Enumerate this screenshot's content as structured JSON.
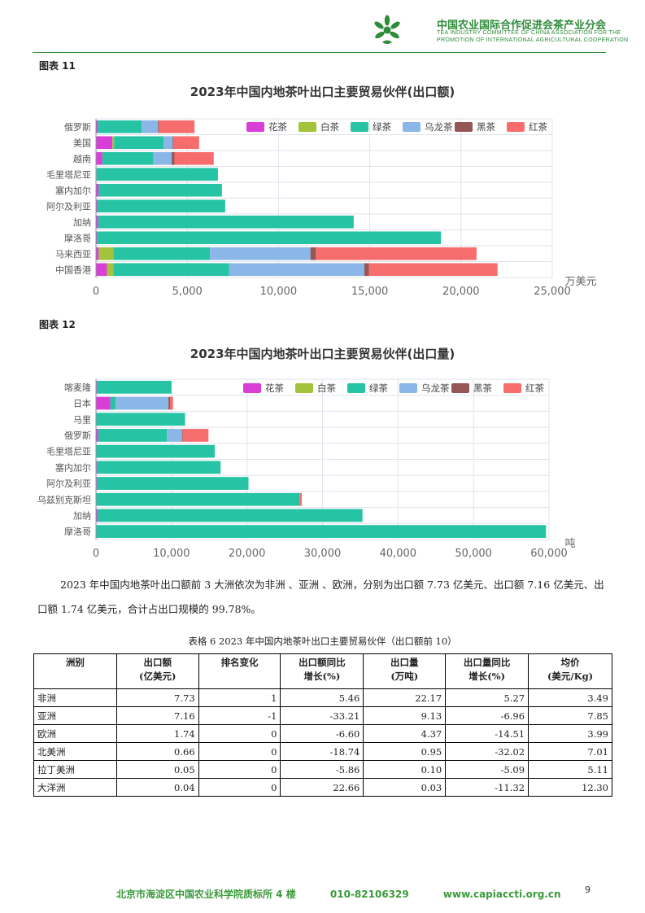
{
  "header": {
    "org_cn": "中国农业国际合作促进会茶产业分会",
    "org_en_line1": "TEA INDUSTRY COMMITTEE OF CHINA ASSOCIATION FOR THE",
    "org_en_line2": "PROMOTION OF INTERNATIONAL AGRICULTURAL COOPERATION",
    "logo_icon": "tea-leaf-logo",
    "accent_color": "#2e8b3a"
  },
  "figure11": {
    "label": "图表 11"
  },
  "figure12": {
    "label": "图表 12"
  },
  "chart_data": [
    {
      "type": "bar",
      "orientation": "horizontal",
      "stacked": true,
      "title": "2023年中国内地茶叶出口主要贸易伙伴(出口额)",
      "unit_label": "万美元",
      "xlim": [
        0,
        25000
      ],
      "xticks": [
        "0",
        "5,000",
        "10,000",
        "15,000",
        "20,000",
        "25,000"
      ],
      "xtick_values": [
        0,
        5000,
        10000,
        15000,
        20000,
        25000
      ],
      "legend_position": "top-right",
      "grid": true,
      "categories": [
        "俄罗斯",
        "美国",
        "越南",
        "毛里塔尼亚",
        "塞内加尔",
        "阿尔及利亚",
        "加纳",
        "摩洛哥",
        "马来西亚",
        "中国香港"
      ],
      "series": [
        {
          "name": "花茶",
          "color": "#d93fd6",
          "values": [
            100,
            900,
            350,
            30,
            150,
            80,
            120,
            50,
            150,
            600
          ]
        },
        {
          "name": "白茶",
          "color": "#a3c43a",
          "values": [
            0,
            100,
            0,
            0,
            0,
            0,
            0,
            0,
            800,
            350
          ]
        },
        {
          "name": "绿茶",
          "color": "#26c3a4",
          "values": [
            2400,
            2700,
            2800,
            6650,
            6750,
            7000,
            14000,
            18850,
            5300,
            6350
          ]
        },
        {
          "name": "乌龙茶",
          "color": "#8ab6e8",
          "values": [
            900,
            500,
            1000,
            0,
            0,
            0,
            0,
            0,
            5500,
            7400
          ]
        },
        {
          "name": "黑茶",
          "color": "#975656",
          "values": [
            50,
            50,
            150,
            0,
            0,
            0,
            0,
            0,
            300,
            250
          ]
        },
        {
          "name": "红茶",
          "color": "#f76d6d",
          "values": [
            1950,
            1400,
            2150,
            0,
            0,
            0,
            0,
            0,
            8800,
            7050
          ]
        }
      ]
    },
    {
      "type": "bar",
      "orientation": "horizontal",
      "stacked": true,
      "title": "2023年中国内地茶叶出口主要贸易伙伴(出口量)",
      "unit_label": "吨",
      "xlim": [
        0,
        60000
      ],
      "xticks": [
        "0",
        "10,000",
        "20,000",
        "30,000",
        "40,000",
        "50,000",
        "60,000"
      ],
      "xtick_values": [
        0,
        10000,
        20000,
        30000,
        40000,
        50000,
        60000
      ],
      "legend_position": "top-right",
      "grid": true,
      "categories": [
        "喀麦隆",
        "日本",
        "马里",
        "俄罗斯",
        "毛里塔尼亚",
        "塞内加尔",
        "阿尔及利亚",
        "乌兹别克斯坦",
        "加纳",
        "摩洛哥"
      ],
      "series": [
        {
          "name": "花茶",
          "color": "#d93fd6",
          "values": [
            100,
            1900,
            50,
            300,
            30,
            100,
            100,
            50,
            200,
            50
          ]
        },
        {
          "name": "白茶",
          "color": "#a3c43a",
          "values": [
            0,
            0,
            0,
            0,
            0,
            0,
            0,
            0,
            0,
            0
          ]
        },
        {
          "name": "绿茶",
          "color": "#26c3a4",
          "values": [
            9900,
            700,
            11750,
            9100,
            15700,
            16400,
            20100,
            26900,
            35100,
            59550
          ]
        },
        {
          "name": "乌龙茶",
          "color": "#8ab6e8",
          "values": [
            0,
            7000,
            0,
            2000,
            0,
            0,
            0,
            0,
            0,
            0
          ]
        },
        {
          "name": "黑茶",
          "color": "#975656",
          "values": [
            0,
            200,
            0,
            100,
            0,
            0,
            0,
            0,
            0,
            0
          ]
        },
        {
          "name": "红茶",
          "color": "#f76d6d",
          "values": [
            0,
            400,
            0,
            3400,
            0,
            0,
            0,
            300,
            0,
            0
          ]
        }
      ]
    }
  ],
  "paragraph": "2023 年中国内地茶叶出口额前 3 大洲依次为非洲 、亚洲 、欧洲，分别为出口额 7.73 亿美元、出口额 7.16 亿美元、出口额 1.74 亿美元，合计占出口规模的 99.78%。",
  "table": {
    "caption": "表格 6 2023 年中国内地茶叶出口主要贸易伙伴（出口额前 10）",
    "headers": [
      {
        "line1": "洲别",
        "line2": ""
      },
      {
        "line1": "出口额",
        "line2": "(亿美元)"
      },
      {
        "line1": "排名变化",
        "line2": ""
      },
      {
        "line1": "出口额同比",
        "line2": "增长(%)"
      },
      {
        "line1": "出口量",
        "line2": "(万吨)"
      },
      {
        "line1": "出口量同比",
        "line2": "增长(%)"
      },
      {
        "line1": "均价",
        "line2": "(美元/Kg)"
      }
    ],
    "rows": [
      [
        "非洲",
        "7.73",
        "1",
        "5.46",
        "22.17",
        "5.27",
        "3.49"
      ],
      [
        "亚洲",
        "7.16",
        "-1",
        "-33.21",
        "9.13",
        "-6.96",
        "7.85"
      ],
      [
        "欧洲",
        "1.74",
        "0",
        "-6.60",
        "4.37",
        "-14.51",
        "3.99"
      ],
      [
        "北美洲",
        "0.66",
        "0",
        "-18.74",
        "0.95",
        "-32.02",
        "7.01"
      ],
      [
        "拉丁美洲",
        "0.05",
        "0",
        "-5.86",
        "0.10",
        "-5.09",
        "5.11"
      ],
      [
        "大洋洲",
        "0.04",
        "0",
        "22.66",
        "0.03",
        "-11.32",
        "12.30"
      ]
    ]
  },
  "footer": {
    "address": "北京市海淀区中国农业科学院质标所 4 楼",
    "phone": "010-82106329",
    "website": "www.capiaccti.org.cn"
  },
  "page_number": "9"
}
